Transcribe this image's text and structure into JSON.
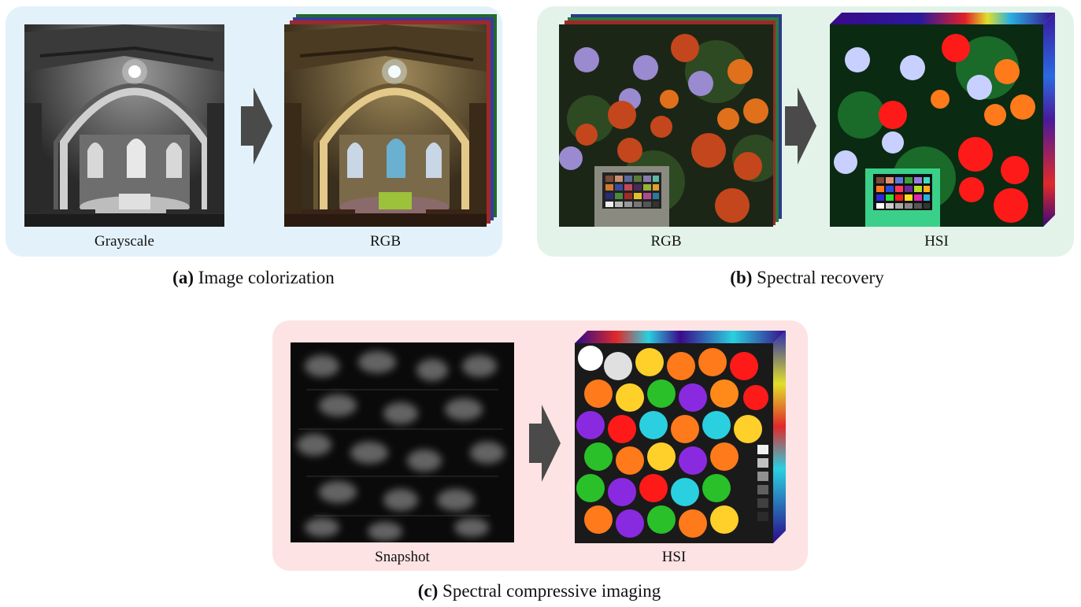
{
  "panels": {
    "a": {
      "caption_letter": "(a)",
      "caption_text": "Image colorization",
      "left_label": "Grayscale",
      "right_label": "RGB",
      "bg_color": "#e3f2fa"
    },
    "b": {
      "caption_letter": "(b)",
      "caption_text": "Spectral recovery",
      "left_label": "RGB",
      "right_label": "HSI",
      "bg_color": "#e4f3ea"
    },
    "c": {
      "caption_letter": "(c)",
      "caption_text": "Spectral compressive imaging",
      "left_label": "Snapshot",
      "right_label": "HSI",
      "bg_color": "#fde3e3"
    }
  },
  "arrow_color": "#4a4a4a",
  "icons": [
    "right-arrow-icon"
  ]
}
